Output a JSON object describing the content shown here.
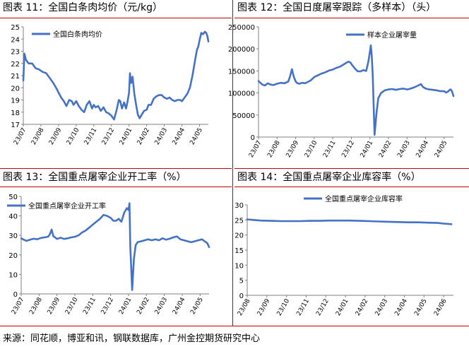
{
  "colors": {
    "line": "#4472c4",
    "rule": "#c00000",
    "axis": "#808080"
  },
  "panels": [
    {
      "title": "图表 11：全国白条肉均价（元/kg）"
    },
    {
      "title": "图表 12：全国日度屠宰跟踪（多样本）（头）"
    },
    {
      "title": "图表 13：全国重点屠宰企业开工率（%）"
    },
    {
      "title": "图表 14：全国重点屠宰企业库容率（%）"
    }
  ],
  "footer": {
    "source": "来源：同花顺，博亚和讯，钢联数据库，广州金控期货研究中心"
  },
  "chart_data": [
    {
      "type": "line",
      "x_ticks": [
        "23/07",
        "23/08",
        "23/09",
        "23/10",
        "23/11",
        "23/12",
        "24/01",
        "24/02",
        "24/03",
        "24/04",
        "24/05"
      ],
      "ylim": [
        17,
        25
      ],
      "y_ticks": [
        17,
        18,
        19,
        20,
        21,
        22,
        23,
        24,
        25
      ],
      "legend": "top-left",
      "series": [
        {
          "name": "全国白条肉均价",
          "x": [
            0,
            0.06,
            0.15,
            0.3,
            0.5,
            0.7,
            0.9,
            1.1,
            1.3,
            1.5,
            1.7,
            1.9,
            2.0,
            2.15,
            2.3,
            2.45,
            2.6,
            2.75,
            2.85,
            3.0,
            3.15,
            3.3,
            3.45,
            3.6,
            3.75,
            3.9,
            4.0,
            4.1,
            4.25,
            4.4,
            4.55,
            4.7,
            4.85,
            5.0,
            5.15,
            5.3,
            5.42,
            5.5,
            5.6,
            5.72,
            5.83,
            5.92,
            6.0,
            6.05,
            6.12,
            6.2,
            6.3,
            6.4,
            6.5,
            6.6,
            6.72,
            6.85,
            7.0,
            7.1,
            7.25,
            7.4,
            7.55,
            7.7,
            7.85,
            8.0,
            8.15,
            8.3,
            8.45,
            8.6,
            8.75,
            8.9,
            9.0,
            9.15,
            9.3,
            9.45,
            9.6,
            9.75,
            9.85,
            9.93,
            10.0,
            10.1,
            10.2,
            10.3,
            10.38,
            10.45,
            10.5
          ],
          "values": [
            20.6,
            22.8,
            22.3,
            22.0,
            22.0,
            21.6,
            21.5,
            21.3,
            21.2,
            20.8,
            20.4,
            19.9,
            19.6,
            19.2,
            18.9,
            18.5,
            19.0,
            18.9,
            18.6,
            18.9,
            18.5,
            18.2,
            18.0,
            18.6,
            18.9,
            18.3,
            18.6,
            18.4,
            18.5,
            18.1,
            18.4,
            18.0,
            17.9,
            17.7,
            17.4,
            18.2,
            19.0,
            18.9,
            18.3,
            18.8,
            18.3,
            18.9,
            19.6,
            21.2,
            20.4,
            20.9,
            19.5,
            18.6,
            17.8,
            17.5,
            17.8,
            18.1,
            18.2,
            18.6,
            18.6,
            19.1,
            19.3,
            19.4,
            19.4,
            19.2,
            19.1,
            19.2,
            19.0,
            18.9,
            19.0,
            19.0,
            18.9,
            19.2,
            19.5,
            20.0,
            21.0,
            22.3,
            23.1,
            23.4,
            23.9,
            24.5,
            24.4,
            24.6,
            24.5,
            24.2,
            23.8
          ]
        }
      ]
    },
    {
      "type": "line",
      "x_ticks": [
        "23/07",
        "23/08",
        "23/09",
        "23/10",
        "23/11",
        "23/12",
        "24/01",
        "24/02",
        "24/03",
        "24/04",
        "24/05"
      ],
      "ylim": [
        0,
        250000
      ],
      "y_ticks": [
        0,
        50000,
        100000,
        150000,
        200000,
        250000
      ],
      "legend": "top-right",
      "series": [
        {
          "name": "样本企业屠宰量",
          "x": [
            0,
            0.1,
            0.2,
            0.35,
            0.5,
            0.65,
            0.8,
            1.0,
            1.2,
            1.4,
            1.6,
            1.7,
            1.8,
            1.9,
            2.0,
            2.1,
            2.2,
            2.35,
            2.5,
            2.65,
            2.8,
            3.0,
            3.2,
            3.4,
            3.6,
            3.8,
            4.0,
            4.2,
            4.4,
            4.6,
            4.75,
            4.85,
            4.95,
            5.05,
            5.2,
            5.35,
            5.5,
            5.65,
            5.8,
            5.92,
            6.0,
            6.05,
            6.1,
            6.15,
            6.25,
            6.35,
            6.45,
            6.6,
            6.8,
            7.0,
            7.2,
            7.4,
            7.6,
            7.8,
            8.0,
            8.2,
            8.4,
            8.6,
            8.75,
            8.85,
            9.0,
            9.2,
            9.4,
            9.6,
            9.8,
            10.0,
            10.1,
            10.2,
            10.3,
            10.35,
            10.42,
            10.5
          ],
          "values": [
            127000,
            123000,
            119000,
            117000,
            122000,
            119000,
            118000,
            121000,
            123000,
            122000,
            126000,
            138000,
            154000,
            137000,
            126000,
            122000,
            121000,
            123000,
            122000,
            125000,
            128000,
            136000,
            140000,
            144000,
            147000,
            151000,
            153000,
            157000,
            160000,
            165000,
            169000,
            171000,
            169000,
            163000,
            155000,
            149000,
            149000,
            152000,
            150000,
            172000,
            193000,
            208000,
            185000,
            140000,
            5000,
            52000,
            88000,
            100000,
            106000,
            108000,
            109000,
            107000,
            109000,
            110000,
            108000,
            110000,
            113000,
            117000,
            120000,
            114000,
            110000,
            108000,
            107000,
            106000,
            104000,
            104000,
            101000,
            103000,
            107000,
            108000,
            104000,
            93000
          ]
        }
      ]
    },
    {
      "type": "line",
      "x_ticks": [
        "23/07",
        "23/08",
        "23/09",
        "23/10",
        "23/11",
        "23/12",
        "24/01",
        "24/02",
        "24/03",
        "24/04",
        "24/05"
      ],
      "ylim": [
        0,
        50
      ],
      "y_ticks": [
        0,
        10,
        20,
        30,
        40,
        50
      ],
      "legend": "top-left",
      "series": [
        {
          "name": "全国重点屠宰企业开工率",
          "x": [
            0,
            0.15,
            0.3,
            0.5,
            0.7,
            0.9,
            1.1,
            1.3,
            1.5,
            1.6,
            1.7,
            1.8,
            1.9,
            2.0,
            2.2,
            2.4,
            2.6,
            2.8,
            3.0,
            3.2,
            3.4,
            3.6,
            3.8,
            4.0,
            4.2,
            4.4,
            4.6,
            4.8,
            5.0,
            5.15,
            5.3,
            5.45,
            5.6,
            5.75,
            5.9,
            6.0,
            6.05,
            6.1,
            6.2,
            6.3,
            6.4,
            6.5,
            6.7,
            6.9,
            7.1,
            7.3,
            7.5,
            7.7,
            7.9,
            8.1,
            8.3,
            8.5,
            8.7,
            8.9,
            9.1,
            9.3,
            9.5,
            9.7,
            9.9,
            10.1,
            10.25,
            10.4,
            10.5
          ],
          "values": [
            28.5,
            27.8,
            27.2,
            27.8,
            28.3,
            28.0,
            28.7,
            29.0,
            29.3,
            30.5,
            33.0,
            29.5,
            29.0,
            28.2,
            28.8,
            28.2,
            28.5,
            29.0,
            29.3,
            30.0,
            31.5,
            32.5,
            34.0,
            35.5,
            37.0,
            38.5,
            40.5,
            40.0,
            39.0,
            37.5,
            37.5,
            38.5,
            37.0,
            41.5,
            44.0,
            43.0,
            46.5,
            24.0,
            2.0,
            18.0,
            25.0,
            26.5,
            27.0,
            27.5,
            28.0,
            27.5,
            28.0,
            27.5,
            28.5,
            27.8,
            28.3,
            29.0,
            29.5,
            28.0,
            27.5,
            27.0,
            26.5,
            27.0,
            27.5,
            28.0,
            27.0,
            26.0,
            24.0
          ]
        }
      ]
    },
    {
      "type": "line",
      "x_ticks": [
        "23/08",
        "23/09",
        "23/10",
        "23/11",
        "23/12",
        "24/01",
        "24/02",
        "24/03",
        "24/04",
        "24/05",
        "24/06"
      ],
      "ylim": [
        0,
        30
      ],
      "y_ticks": [
        0,
        5,
        10,
        15,
        20,
        25,
        30
      ],
      "legend": "top-right",
      "series": [
        {
          "name": "全国重点屠宰企业库容率",
          "x": [
            0,
            0.3,
            0.7,
            1.2,
            1.7,
            2.2,
            2.7,
            3.2,
            3.7,
            4.2,
            4.7,
            5.2,
            5.7,
            6.2,
            6.7,
            7.2,
            7.7,
            8.2,
            8.7,
            9.2,
            9.7,
            10.0,
            10.4
          ],
          "values": [
            25.2,
            25.0,
            24.8,
            24.7,
            24.6,
            24.6,
            24.6,
            24.7,
            24.7,
            24.8,
            24.8,
            24.8,
            24.7,
            24.6,
            24.5,
            24.4,
            24.3,
            24.2,
            24.2,
            24.1,
            24.0,
            23.8,
            23.6
          ]
        }
      ]
    }
  ]
}
